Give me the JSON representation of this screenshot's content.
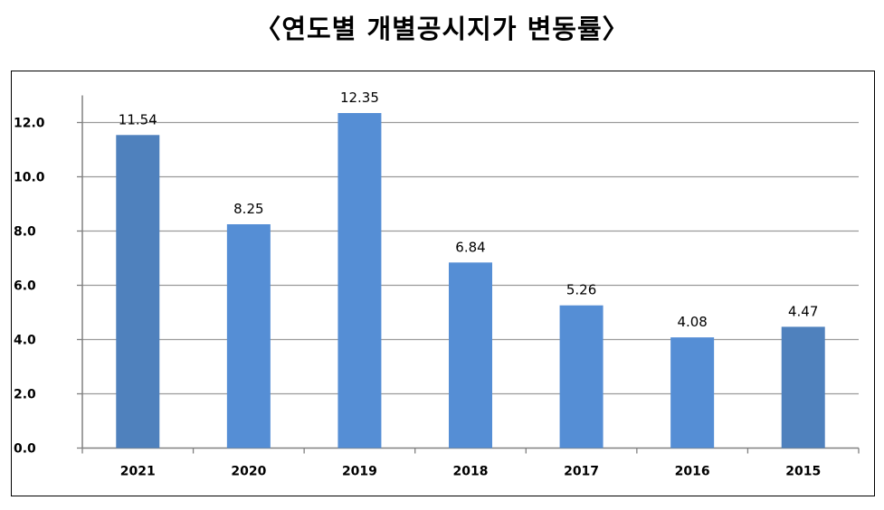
{
  "title": "〈연도별  개별공시지가  변동률〉",
  "chart_data": {
    "type": "bar",
    "title": "〈연도별  개별공시지가  변동률〉",
    "xlabel": "",
    "ylabel": "",
    "categories": [
      "2021",
      "2020",
      "2019",
      "2018",
      "2017",
      "2016",
      "2015"
    ],
    "values": [
      11.54,
      8.25,
      12.35,
      6.84,
      5.26,
      4.08,
      4.47
    ],
    "data_labels": [
      "11.54",
      "8.25",
      "12.35",
      "6.84",
      "5.26",
      "4.08",
      "4.47"
    ],
    "ylim": [
      0,
      12.0
    ],
    "yticks": [
      "0.0",
      "2.0",
      "4.0",
      "6.0",
      "8.0",
      "10.0",
      "12.0"
    ],
    "grid": true,
    "legend": "none",
    "colors": {
      "bar": "#558ed5",
      "bar_dark": "#4f81bd",
      "grid": "#9a9a9a",
      "axis": "#808080",
      "text": "#000000"
    },
    "dark_bars": [
      0,
      6
    ]
  }
}
